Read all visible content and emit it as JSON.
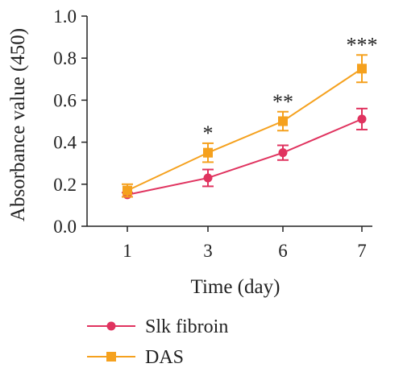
{
  "chart_data": {
    "type": "line",
    "xlabel": "Time (day)",
    "ylabel": "Absorbance value (450)",
    "categories": [
      "1",
      "3",
      "6",
      "7"
    ],
    "ylim": [
      0,
      1.0
    ],
    "yticks": [
      0.0,
      0.2,
      0.4,
      0.6,
      0.8,
      1.0
    ],
    "ytick_labels": [
      "0.0",
      "0.2",
      "0.4",
      "0.6",
      "0.8",
      "1.0"
    ],
    "grid": false,
    "legend_position": "bottom-left",
    "series": [
      {
        "name": "Slk fibroin",
        "marker": "circle",
        "color": "#e0335f",
        "values": [
          0.15,
          0.23,
          0.35,
          0.51
        ],
        "errors": [
          0.01,
          0.04,
          0.035,
          0.05
        ]
      },
      {
        "name": "DAS",
        "marker": "square",
        "color": "#f5a11e",
        "values": [
          0.17,
          0.35,
          0.5,
          0.75
        ],
        "errors": [
          0.03,
          0.045,
          0.045,
          0.065
        ]
      }
    ],
    "annotations": [
      "",
      "*",
      "**",
      "***"
    ]
  }
}
